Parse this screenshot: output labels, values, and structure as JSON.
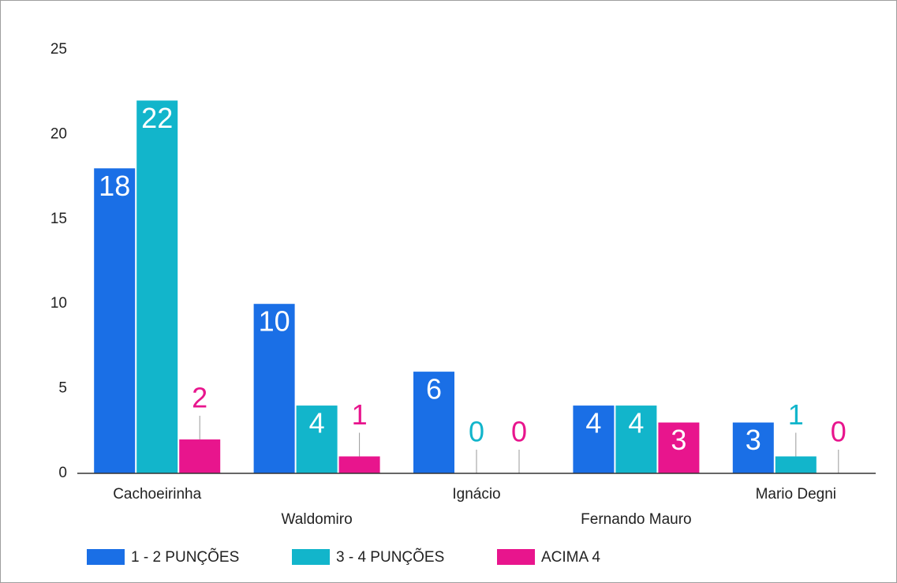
{
  "chart_data": {
    "type": "bar",
    "categories": [
      "Cachoeirinha",
      "Waldomiro",
      "Ignácio",
      "Fernando Mauro",
      "Mario Degni"
    ],
    "series": [
      {
        "name": "1 - 2 PUNÇÕES",
        "color": "#1a6fe6",
        "values": [
          18,
          10,
          6,
          4,
          3
        ]
      },
      {
        "name": "3 - 4 PUNÇÕES",
        "color": "#12b5cb",
        "values": [
          22,
          4,
          0,
          4,
          1
        ]
      },
      {
        "name": "ACIMA 4",
        "color": "#e8158d",
        "values": [
          2,
          1,
          0,
          3,
          0
        ]
      }
    ],
    "ylim": [
      0,
      25
    ],
    "yticks": [
      0,
      5,
      10,
      15,
      20,
      25
    ],
    "grid": false,
    "legend": "bottom"
  }
}
